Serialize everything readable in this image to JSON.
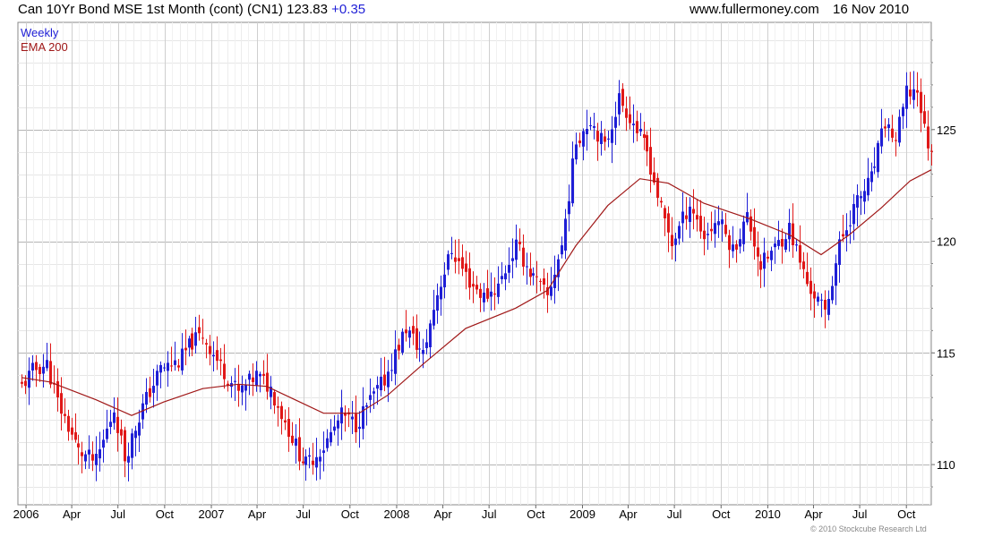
{
  "header": {
    "title": "Can 10Yr Bond MSE 1st Month (cont) (CN1) 123.83",
    "change": "+0.35",
    "site": "www.fullermoney.com",
    "date": "16 Nov 2010"
  },
  "copyright": "© 2010 Stockcube Research Ltd",
  "chart_data": {
    "type": "candlestick",
    "title": "Can 10Yr Bond MSE 1st Month (cont) (CN1) 123.83 +0.35",
    "xlabel": "",
    "ylabel": "",
    "ylim": [
      108.2,
      129.8
    ],
    "xlim": [
      "2005-12-16",
      "2010-11-19"
    ],
    "y_axis_side": "right",
    "y_ticks": [
      110,
      115,
      120,
      125
    ],
    "grid": true,
    "x_ticks": [
      {
        "date": "2006-01-01",
        "label": "2006"
      },
      {
        "date": "2006-04-01",
        "label": "Apr"
      },
      {
        "date": "2006-07-01",
        "label": "Jul"
      },
      {
        "date": "2006-10-01",
        "label": "Oct"
      },
      {
        "date": "2007-01-01",
        "label": "2007"
      },
      {
        "date": "2007-04-01",
        "label": "Apr"
      },
      {
        "date": "2007-07-01",
        "label": "Jul"
      },
      {
        "date": "2007-10-01",
        "label": "Oct"
      },
      {
        "date": "2008-01-01",
        "label": "2008"
      },
      {
        "date": "2008-04-01",
        "label": "Apr"
      },
      {
        "date": "2008-07-01",
        "label": "Jul"
      },
      {
        "date": "2008-10-01",
        "label": "Oct"
      },
      {
        "date": "2009-01-01",
        "label": "2009"
      },
      {
        "date": "2009-04-01",
        "label": "Apr"
      },
      {
        "date": "2009-07-01",
        "label": "Jul"
      },
      {
        "date": "2009-10-01",
        "label": "Oct"
      },
      {
        "date": "2010-01-01",
        "label": "2010"
      },
      {
        "date": "2010-04-01",
        "label": "Apr"
      },
      {
        "date": "2010-07-01",
        "label": "Jul"
      },
      {
        "date": "2010-10-01",
        "label": "Oct"
      }
    ],
    "legend": [
      {
        "name": "Weekly",
        "color": "#1f1fd6"
      },
      {
        "name": "EMA 200",
        "color": "#a01818"
      }
    ],
    "legend_position": "top-left",
    "colors": {
      "up": "#1f1fd6",
      "down": "#e01818",
      "ema": "#a01818",
      "grid": "#d4d4d4"
    },
    "close_path": [
      [
        "2005-12-23",
        113.5
      ],
      [
        "2006-01-13",
        114.2
      ],
      [
        "2006-02-10",
        114.5
      ],
      [
        "2006-03-03",
        112.8
      ],
      [
        "2006-04-14",
        110.6
      ],
      [
        "2006-05-19",
        110.1
      ],
      [
        "2006-06-23",
        112.5
      ],
      [
        "2006-07-14",
        110.3
      ],
      [
        "2006-08-18",
        112.6
      ],
      [
        "2006-09-22",
        114.3
      ],
      [
        "2006-10-27",
        114.6
      ],
      [
        "2006-11-24",
        115.5
      ],
      [
        "2006-12-15",
        115.8
      ],
      [
        "2007-01-19",
        114.4
      ],
      [
        "2007-02-23",
        113.2
      ],
      [
        "2007-03-30",
        114.0
      ],
      [
        "2007-04-27",
        113.4
      ],
      [
        "2007-05-25",
        111.9
      ],
      [
        "2007-06-22",
        110.5
      ],
      [
        "2007-07-06",
        110.0
      ],
      [
        "2007-08-10",
        110.8
      ],
      [
        "2007-09-14",
        112.2
      ],
      [
        "2007-10-12",
        111.8
      ],
      [
        "2007-11-02",
        112.6
      ],
      [
        "2007-12-07",
        113.8
      ],
      [
        "2008-01-18",
        116.1
      ],
      [
        "2008-02-22",
        114.9
      ],
      [
        "2008-03-21",
        117.7
      ],
      [
        "2008-04-18",
        119.6
      ],
      [
        "2008-05-23",
        118.2
      ],
      [
        "2008-06-20",
        117.5
      ],
      [
        "2008-07-18",
        118.0
      ],
      [
        "2008-08-22",
        119.8
      ],
      [
        "2008-09-19",
        118.6
      ],
      [
        "2008-10-24",
        117.5
      ],
      [
        "2008-11-21",
        119.8
      ],
      [
        "2008-12-19",
        124.5
      ],
      [
        "2009-01-16",
        125.5
      ],
      [
        "2009-02-13",
        124.2
      ],
      [
        "2009-03-13",
        126.4
      ],
      [
        "2009-04-10",
        125.3
      ],
      [
        "2009-05-08",
        124.0
      ],
      [
        "2009-06-05",
        121.4
      ],
      [
        "2009-06-26",
        119.9
      ],
      [
        "2009-07-31",
        121.7
      ],
      [
        "2009-08-28",
        120.2
      ],
      [
        "2009-09-25",
        121.0
      ],
      [
        "2009-10-23",
        119.6
      ],
      [
        "2009-11-20",
        121.1
      ],
      [
        "2009-12-18",
        118.9
      ],
      [
        "2010-01-15",
        119.7
      ],
      [
        "2010-02-12",
        120.6
      ],
      [
        "2010-03-19",
        118.1
      ],
      [
        "2010-04-23",
        116.8
      ],
      [
        "2010-05-21",
        119.8
      ],
      [
        "2010-06-18",
        121.5
      ],
      [
        "2010-07-23",
        122.8
      ],
      [
        "2010-08-20",
        125.3
      ],
      [
        "2010-09-10",
        124.5
      ],
      [
        "2010-10-01",
        126.6
      ],
      [
        "2010-10-22",
        126.8
      ],
      [
        "2010-11-05",
        125.0
      ],
      [
        "2010-11-19",
        123.83
      ]
    ],
    "ema_200": [
      [
        "2005-12-23",
        113.9
      ],
      [
        "2006-02-17",
        113.7
      ],
      [
        "2006-05-19",
        112.9
      ],
      [
        "2006-07-28",
        112.2
      ],
      [
        "2006-09-29",
        112.8
      ],
      [
        "2006-12-15",
        113.4
      ],
      [
        "2007-02-23",
        113.6
      ],
      [
        "2007-04-20",
        113.5
      ],
      [
        "2007-06-15",
        112.9
      ],
      [
        "2007-08-10",
        112.3
      ],
      [
        "2007-10-19",
        112.3
      ],
      [
        "2007-12-14",
        113.1
      ],
      [
        "2008-02-22",
        114.5
      ],
      [
        "2008-05-16",
        116.1
      ],
      [
        "2008-08-22",
        117.0
      ],
      [
        "2008-10-24",
        117.8
      ],
      [
        "2008-12-19",
        119.8
      ],
      [
        "2009-02-20",
        121.6
      ],
      [
        "2009-04-24",
        122.8
      ],
      [
        "2009-06-19",
        122.6
      ],
      [
        "2009-08-28",
        121.7
      ],
      [
        "2009-11-27",
        121.0
      ],
      [
        "2010-02-12",
        120.3
      ],
      [
        "2010-04-16",
        119.4
      ],
      [
        "2010-06-11",
        120.3
      ],
      [
        "2010-08-13",
        121.5
      ],
      [
        "2010-10-08",
        122.7
      ],
      [
        "2010-11-19",
        123.2
      ]
    ],
    "last_close": 123.83,
    "change": 0.35
  }
}
